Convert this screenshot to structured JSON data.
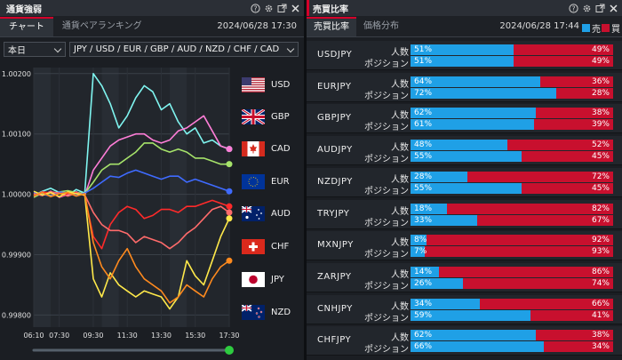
{
  "left_panel": {
    "title": "通貨強弱",
    "tabs": [
      {
        "label": "チャート"
      },
      {
        "label": "通貨ペアランキング"
      }
    ],
    "timestamp": "2024/06/28 17:30",
    "period_select": "本日",
    "currency_select": "JPY / USD / EUR / GBP / AUD / NZD / CHF / CAD"
  },
  "right_panel": {
    "title": "売買比率",
    "tabs": [
      {
        "label": "売買比率"
      },
      {
        "label": "価格分布"
      }
    ],
    "timestamp": "2024/06/28 17:44",
    "legend": {
      "sell": "売",
      "buy": "買"
    },
    "row_labels": {
      "people": "人数",
      "position": "ポジション"
    },
    "rows": [
      {
        "pair": "USDJPY",
        "people": {
          "sell": "51%",
          "buy": "49%"
        },
        "position": {
          "sell": "51%",
          "buy": "49%"
        }
      },
      {
        "pair": "EURJPY",
        "people": {
          "sell": "64%",
          "buy": "36%"
        },
        "position": {
          "sell": "72%",
          "buy": "28%"
        }
      },
      {
        "pair": "GBPJPY",
        "people": {
          "sell": "62%",
          "buy": "38%"
        },
        "position": {
          "sell": "61%",
          "buy": "39%"
        }
      },
      {
        "pair": "AUDJPY",
        "people": {
          "sell": "48%",
          "buy": "52%"
        },
        "position": {
          "sell": "55%",
          "buy": "45%"
        }
      },
      {
        "pair": "NZDJPY",
        "people": {
          "sell": "28%",
          "buy": "72%"
        },
        "position": {
          "sell": "55%",
          "buy": "45%"
        }
      },
      {
        "pair": "TRYJPY",
        "people": {
          "sell": "18%",
          "buy": "82%"
        },
        "position": {
          "sell": "33%",
          "buy": "67%"
        }
      },
      {
        "pair": "MXNJPY",
        "people": {
          "sell": "8%",
          "buy": "92%"
        },
        "position": {
          "sell": "7%",
          "buy": "93%"
        }
      },
      {
        "pair": "ZARJPY",
        "people": {
          "sell": "14%",
          "buy": "86%"
        },
        "position": {
          "sell": "26%",
          "buy": "74%"
        }
      },
      {
        "pair": "CNHJPY",
        "people": {
          "sell": "34%",
          "buy": "66%"
        },
        "position": {
          "sell": "59%",
          "buy": "41%"
        }
      },
      {
        "pair": "CHFJPY",
        "people": {
          "sell": "62%",
          "buy": "38%"
        },
        "position": {
          "sell": "66%",
          "buy": "34%"
        }
      }
    ]
  },
  "icons": [
    "help-icon",
    "gear-icon",
    "popout-icon",
    "close-icon",
    "chevron-down-icon"
  ],
  "colors": {
    "accent": "#d4002a",
    "sell_blue": "#1fa0e6",
    "buy_red": "#c8102e",
    "USD": "#7ff5f0",
    "GBP": "#ff7ed8",
    "CAD": "#a6e36a",
    "EUR": "#3f6bff",
    "AUD": "#ff2a2a",
    "CHF": "#ff6b6b",
    "JPY": "#ffe94a",
    "NZD": "#ff8a1e"
  },
  "chart_data": {
    "type": "line",
    "x": [
      "06:10",
      "06:30",
      "07:00",
      "07:30",
      "08:00",
      "08:30",
      "09:00",
      "09:30",
      "10:00",
      "10:30",
      "11:00",
      "11:30",
      "12:00",
      "12:30",
      "13:00",
      "13:30",
      "14:00",
      "14:30",
      "15:00",
      "15:30",
      "16:00",
      "16:30",
      "17:00",
      "17:30"
    ],
    "xticks": [
      "06:10",
      "07:30",
      "09:30",
      "11:30",
      "13:30",
      "15:30",
      "17:30"
    ],
    "yticks": [
      "1.00200",
      "1.00100",
      "1.00000",
      "0.99900",
      "0.99800"
    ],
    "ylim": [
      0.9978,
      1.0021
    ],
    "series": [
      {
        "name": "USD",
        "color": "#7ff5f0",
        "values": [
          0.99998,
          1.00005,
          1.0001,
          1.00003,
          0.99998,
          1.00008,
          1.00002,
          1.002,
          1.0018,
          1.0015,
          1.0011,
          1.0013,
          1.0016,
          1.0018,
          1.0017,
          1.0014,
          1.0015,
          1.0012,
          1.001,
          1.0011,
          1.00085,
          1.0009,
          1.0008,
          1.00075
        ]
      },
      {
        "name": "GBP",
        "color": "#ff7ed8",
        "values": [
          1.00002,
          0.99998,
          1.00005,
          0.99995,
          1.0,
          1.00004,
          0.99998,
          1.0004,
          1.0006,
          1.0008,
          1.0009,
          1.00095,
          1.001,
          1.001,
          1.0009,
          1.00085,
          1.0009,
          1.00105,
          1.0011,
          1.0012,
          1.0013,
          1.00105,
          1.0008,
          1.00075
        ]
      },
      {
        "name": "CAD",
        "color": "#a6e36a",
        "values": [
          0.99995,
          1.00002,
          0.99998,
          1.00004,
          1.00006,
          1.00003,
          1.00001,
          1.0002,
          1.0004,
          1.0005,
          1.0005,
          1.0006,
          1.0007,
          1.00085,
          1.00085,
          1.00075,
          1.0007,
          1.00075,
          1.0007,
          1.0006,
          1.0006,
          1.00055,
          1.0005,
          1.0005
        ]
      },
      {
        "name": "EUR",
        "color": "#3f6bff",
        "values": [
          1.00003,
          1.0,
          0.99997,
          1.00004,
          1.00002,
          0.99998,
          1.00002,
          1.0001,
          1.0002,
          1.0003,
          1.00028,
          1.00035,
          1.0004,
          1.00035,
          1.0003,
          1.00025,
          1.0003,
          1.0003,
          1.0002,
          1.00025,
          1.0002,
          1.00015,
          1.0001,
          1.00005
        ]
      },
      {
        "name": "AUD",
        "color": "#ff2a2a",
        "values": [
          0.99997,
          1.00004,
          1.00002,
          0.99996,
          1.00001,
          1.00003,
          0.99998,
          0.9993,
          0.9991,
          0.9995,
          0.9997,
          0.9998,
          0.99975,
          0.9996,
          0.99965,
          0.99975,
          0.99975,
          0.9997,
          0.9998,
          0.9998,
          0.99985,
          0.9999,
          0.99985,
          0.9998
        ]
      },
      {
        "name": "CHF",
        "color": "#ff6b6b",
        "values": [
          1.00001,
          0.99998,
          1.00004,
          1.00002,
          0.99997,
          1.00002,
          0.99999,
          0.9997,
          0.9995,
          0.9994,
          0.9994,
          0.99935,
          0.9992,
          0.9993,
          0.99925,
          0.9992,
          0.9991,
          0.9992,
          0.99935,
          0.99945,
          0.9996,
          0.99975,
          0.9998,
          0.9997
        ]
      },
      {
        "name": "JPY",
        "color": "#ffe94a",
        "values": [
          1.00005,
          0.99999,
          1.00003,
          0.99996,
          1.00004,
          1.00001,
          0.99999,
          0.9986,
          0.9983,
          0.9987,
          0.9985,
          0.9984,
          0.9983,
          0.9984,
          0.99835,
          0.9983,
          0.9981,
          0.9983,
          0.9989,
          0.99865,
          0.9985,
          0.9989,
          0.9993,
          0.9996
        ]
      },
      {
        "name": "NZD",
        "color": "#ff8a1e",
        "values": [
          0.99998,
          1.00003,
          0.99996,
          1.00001,
          1.00003,
          0.99997,
          1.00001,
          0.9992,
          0.9988,
          0.9986,
          0.9989,
          0.9991,
          0.9988,
          0.9986,
          0.9985,
          0.9984,
          0.9982,
          0.9983,
          0.9985,
          0.9984,
          0.9983,
          0.9986,
          0.9988,
          0.9989
        ]
      }
    ]
  }
}
